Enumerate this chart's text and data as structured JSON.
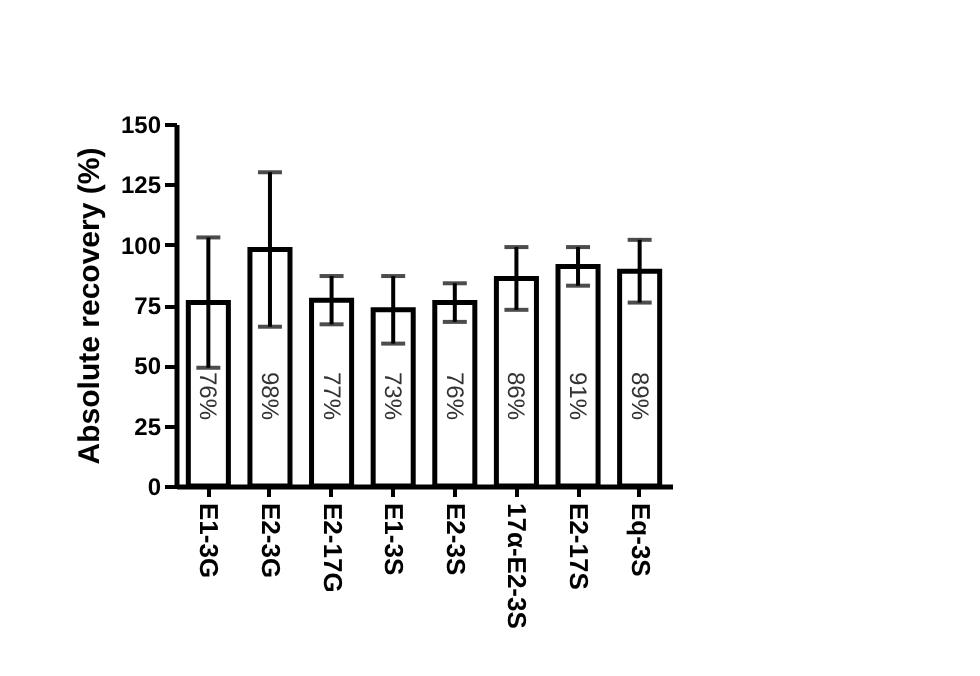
{
  "chart_data": {
    "type": "bar",
    "ylabel": "Absolute recovery (%)",
    "categories": [
      "E1-3G",
      "E2-3G",
      "E2-17G",
      "E1-3S",
      "E2-3S",
      "17α-E2-3S",
      "E2-17S",
      "Eq-3S"
    ],
    "values": [
      76,
      98,
      77,
      73,
      76,
      86,
      91,
      89
    ],
    "value_labels": [
      "76%",
      "98%",
      "77%",
      "73%",
      "76%",
      "86%",
      "91%",
      "89%"
    ],
    "errors": [
      [
        49,
        103
      ],
      [
        66,
        130
      ],
      [
        67,
        87
      ],
      [
        59,
        87
      ],
      [
        68,
        84
      ],
      [
        73,
        99
      ],
      [
        83,
        99
      ],
      [
        76,
        102
      ]
    ],
    "color": "#ffffff",
    "ylim": [
      0,
      150
    ],
    "yticks": [
      0,
      25,
      50,
      75,
      100,
      125,
      150
    ]
  }
}
